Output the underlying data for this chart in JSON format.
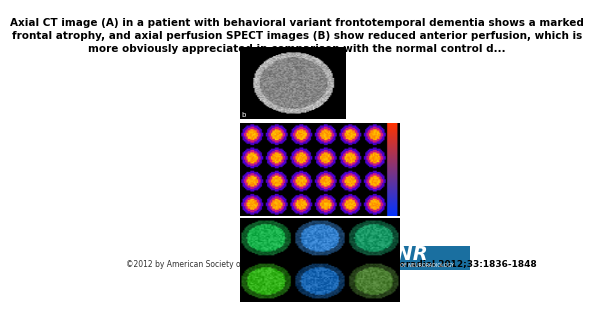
{
  "title": "Axial CT image (A) in a patient with behavioral variant frontotemporal dementia shows a marked\nfrontal atrophy, and axial perfusion SPECT images (B) show reduced anterior perfusion, which is\nmore obviously appreciated in comparison with the normal control d...",
  "caption": "A.D. Murray AJNR Am J Neuroradiol 2012;33:1836-1848",
  "copyright": "©2012 by American Society of Neuroradiology",
  "background_color": "#ffffff",
  "ainr_box_color": "#1a6fa0",
  "title_fontsize": 7.5,
  "caption_fontsize": 6.5,
  "copyright_fontsize": 5.5
}
